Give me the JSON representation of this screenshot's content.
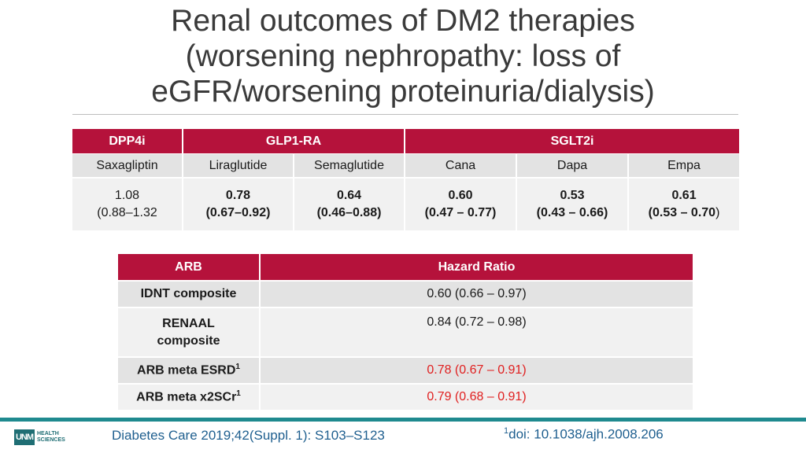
{
  "title": {
    "line1": "Renal outcomes of DM2 therapies",
    "line2": "(worsening nephropathy: loss of",
    "line3": "eGFR/worsening proteinuria/dialysis)"
  },
  "therapy_table": {
    "classes": [
      "DPP4i",
      "GLP1-RA",
      "SGLT2i"
    ],
    "drugs": [
      "Saxagliptin",
      "Liraglutide",
      "Semaglutide",
      "Cana",
      "Dapa",
      "Empa"
    ],
    "values": [
      {
        "hr": "1.08",
        "ci": "(0.88–1.32"
      },
      {
        "hr": "0.78",
        "ci": "(0.67–0.92)"
      },
      {
        "hr": "0.64",
        "ci": "(0.46–0.88)"
      },
      {
        "hr": "0.60",
        "ci": "(0.47 – 0.77)"
      },
      {
        "hr": "0.53",
        "ci": "(0.43 – 0.66)"
      },
      {
        "hr": "0.61",
        "ci": "(0.53 – 0.70",
        "ci_tail": ")"
      }
    ]
  },
  "arb_table": {
    "header_left": "ARB",
    "header_right": "Hazard Ratio",
    "rows": [
      {
        "label": "IDNT composite",
        "value": "0.60 (0.66 – 0.97)"
      },
      {
        "label_line1": "RENAAL",
        "label_line2": "composite",
        "value": "0.84 (0.72 – 0.98)"
      },
      {
        "label": "ARB meta ESRD",
        "sup": "1",
        "value": "0.78 (0.67 – 0.91)"
      },
      {
        "label": "ARB meta x2SCr",
        "sup": "1",
        "value": "0.79 (0.68 – 0.91)"
      }
    ],
    "highlight_color": "#e02020"
  },
  "footer": {
    "logo_mark": "UNM",
    "logo_line1": "HEALTH",
    "logo_line2": "SCIENCES",
    "citation": "Diabetes Care 2019;42(Suppl. 1): S103–S123",
    "doi_sup": "1",
    "doi": "doi: 10.1038/ajh.2008.206"
  },
  "colors": {
    "header": "#b5123b",
    "accent_bar": "#1f8a8f",
    "footer_text": "#1f5f8f"
  }
}
